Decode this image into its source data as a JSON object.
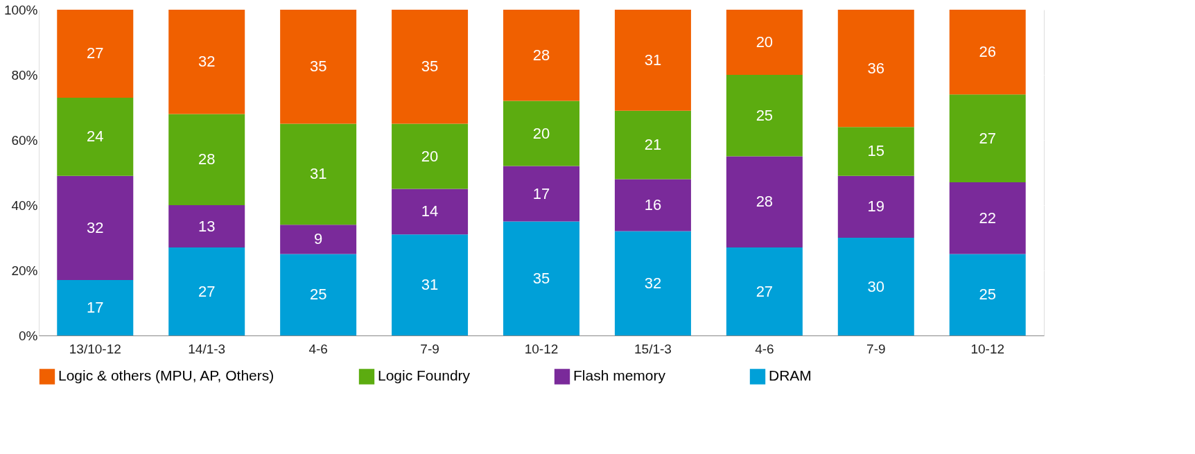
{
  "chart_data": {
    "type": "bar",
    "stacked": true,
    "data_labels": true,
    "grid": "y",
    "legend": "bottom",
    "categories": [
      "13/10-12",
      "14/1-3",
      "4-6",
      "7-9",
      "10-12",
      "15/1-3",
      "4-6",
      "7-9",
      "10-12"
    ],
    "ylim": [
      0,
      100
    ],
    "yticks": [
      {
        "value": 0,
        "label": "0%"
      },
      {
        "value": 20,
        "label": "20%"
      },
      {
        "value": 40,
        "label": "40%"
      },
      {
        "value": 60,
        "label": "60%"
      },
      {
        "value": 80,
        "label": "80%"
      },
      {
        "value": 100,
        "label": "100%"
      }
    ],
    "series": [
      {
        "name": "DRAM",
        "color": "#00a0d8",
        "values": [
          17,
          27,
          25,
          31,
          35,
          32,
          27,
          30,
          25
        ]
      },
      {
        "name": "Flash memory",
        "color": "#7a2a9a",
        "values": [
          32,
          13,
          9,
          14,
          17,
          16,
          28,
          19,
          22
        ]
      },
      {
        "name": "Logic Foundry",
        "color": "#5cac10",
        "values": [
          24,
          28,
          31,
          20,
          20,
          21,
          25,
          15,
          27
        ]
      },
      {
        "name": "Logic & others (MPU, AP, Others)",
        "color": "#f06000",
        "values": [
          27,
          32,
          35,
          35,
          28,
          31,
          20,
          36,
          26
        ]
      }
    ]
  }
}
